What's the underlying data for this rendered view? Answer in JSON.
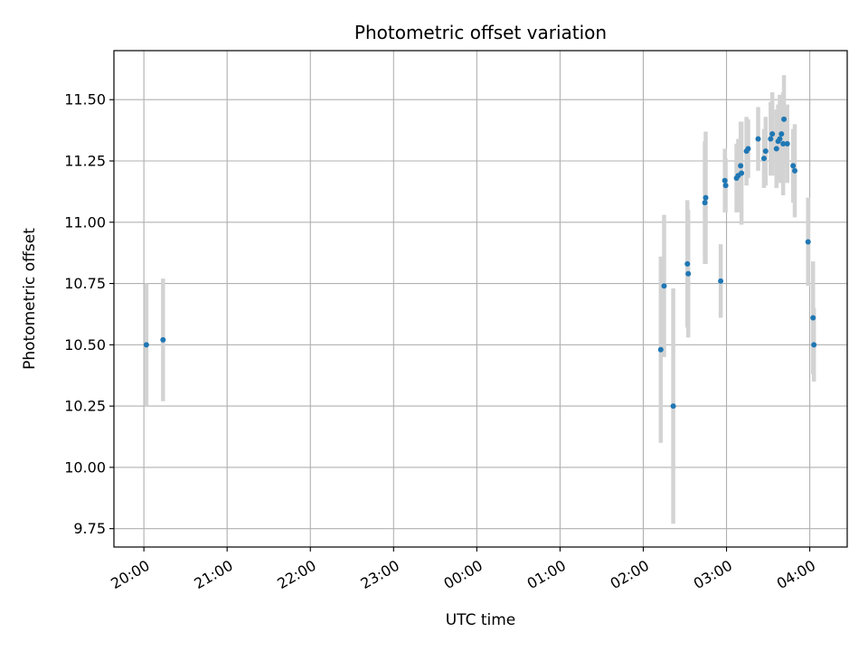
{
  "chart_data": {
    "type": "scatter",
    "title": "Photometric offset variation",
    "xlabel": "UTC time",
    "ylabel": "Photometric offset",
    "x_tick_labels": [
      "20:00",
      "21:00",
      "22:00",
      "23:00",
      "00:00",
      "01:00",
      "02:00",
      "03:00",
      "04:00"
    ],
    "y_tick_labels": [
      "9.75",
      "10.00",
      "10.25",
      "10.50",
      "10.75",
      "11.00",
      "11.25",
      "11.50"
    ],
    "x_ticks_hours": [
      0,
      1,
      2,
      3,
      4,
      5,
      6,
      7,
      8
    ],
    "y_ticks": [
      9.75,
      10.0,
      10.25,
      10.5,
      10.75,
      11.0,
      11.25,
      11.5
    ],
    "xlim_hours": [
      -0.36,
      8.45
    ],
    "ylim": [
      9.675,
      11.7
    ],
    "x_unit": "hours since 20:00 UTC",
    "grid": true,
    "colors": {
      "point": "#1f77b4",
      "errorbar": "#d3d3d3",
      "grid": "#b0b0b0"
    },
    "points": [
      {
        "x": 0.03,
        "y": 10.5,
        "err": 0.25
      },
      {
        "x": 0.23,
        "y": 10.52,
        "err": 0.25
      },
      {
        "x": 6.21,
        "y": 10.48,
        "err": 0.38
      },
      {
        "x": 6.25,
        "y": 10.74,
        "err": 0.29
      },
      {
        "x": 6.36,
        "y": 10.25,
        "err": 0.48
      },
      {
        "x": 6.53,
        "y": 10.83,
        "err": 0.26
      },
      {
        "x": 6.54,
        "y": 10.79,
        "err": 0.26
      },
      {
        "x": 6.74,
        "y": 11.08,
        "err": 0.25
      },
      {
        "x": 6.75,
        "y": 11.1,
        "err": 0.27
      },
      {
        "x": 6.93,
        "y": 10.76,
        "err": 0.15
      },
      {
        "x": 6.98,
        "y": 11.17,
        "err": 0.13
      },
      {
        "x": 6.99,
        "y": 11.15,
        "err": 0.11
      },
      {
        "x": 7.12,
        "y": 11.18,
        "err": 0.14
      },
      {
        "x": 7.14,
        "y": 11.19,
        "err": 0.15
      },
      {
        "x": 7.17,
        "y": 11.23,
        "err": 0.18
      },
      {
        "x": 7.18,
        "y": 11.2,
        "err": 0.21
      },
      {
        "x": 7.24,
        "y": 11.29,
        "err": 0.14
      },
      {
        "x": 7.26,
        "y": 11.3,
        "err": 0.12
      },
      {
        "x": 7.38,
        "y": 11.34,
        "err": 0.13
      },
      {
        "x": 7.45,
        "y": 11.26,
        "err": 0.12
      },
      {
        "x": 7.47,
        "y": 11.29,
        "err": 0.14
      },
      {
        "x": 7.53,
        "y": 11.34,
        "err": 0.15
      },
      {
        "x": 7.55,
        "y": 11.36,
        "err": 0.17
      },
      {
        "x": 7.6,
        "y": 11.3,
        "err": 0.16
      },
      {
        "x": 7.62,
        "y": 11.33,
        "err": 0.15
      },
      {
        "x": 7.64,
        "y": 11.34,
        "err": 0.18
      },
      {
        "x": 7.66,
        "y": 11.36,
        "err": 0.15
      },
      {
        "x": 7.68,
        "y": 11.32,
        "err": 0.21
      },
      {
        "x": 7.69,
        "y": 11.42,
        "err": 0.18
      },
      {
        "x": 7.73,
        "y": 11.32,
        "err": 0.16
      },
      {
        "x": 7.8,
        "y": 11.23,
        "err": 0.15
      },
      {
        "x": 7.82,
        "y": 11.21,
        "err": 0.19
      },
      {
        "x": 7.98,
        "y": 10.92,
        "err": 0.18
      },
      {
        "x": 8.04,
        "y": 10.61,
        "err": 0.23
      },
      {
        "x": 8.05,
        "y": 10.5,
        "err": 0.15
      }
    ]
  }
}
